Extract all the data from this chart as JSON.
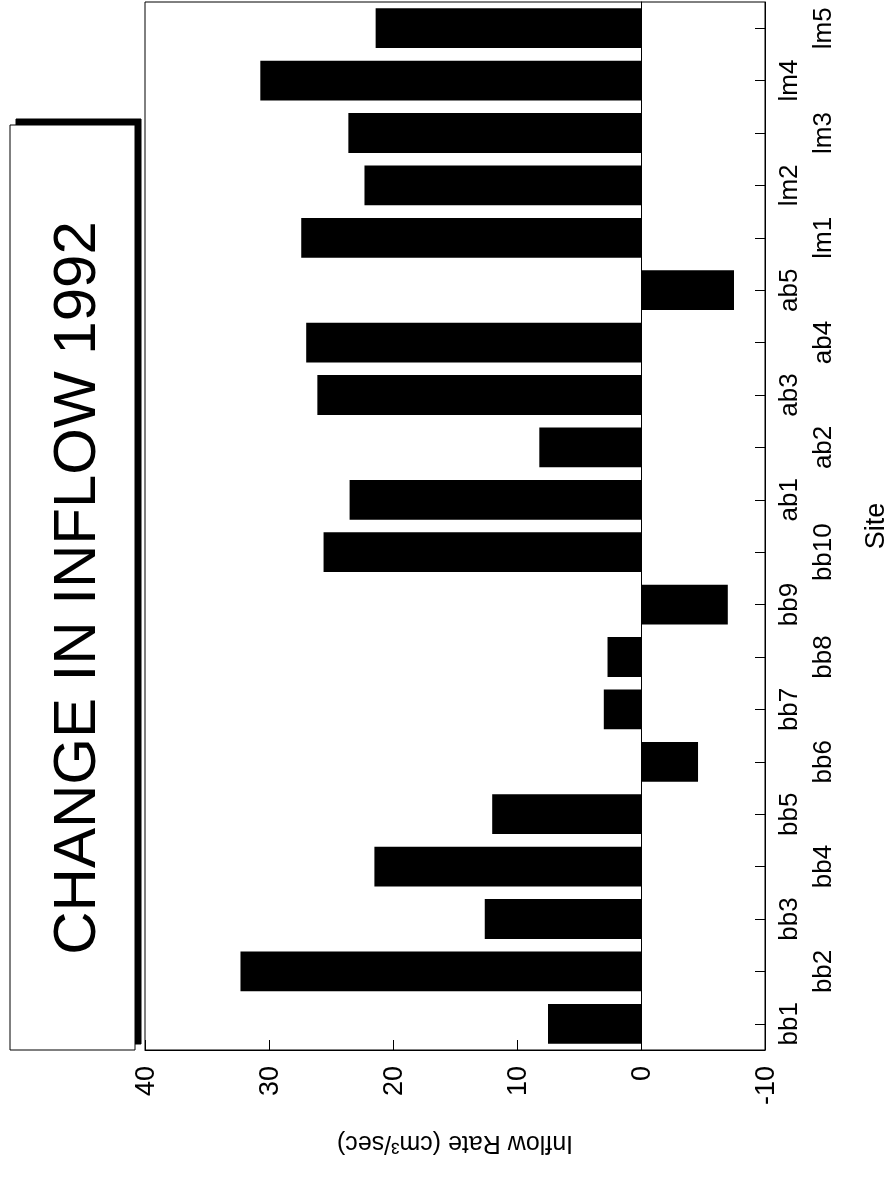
{
  "chart_data": {
    "type": "bar",
    "orientation": "horizontal",
    "title": "CHANGE IN INFLOW 1992",
    "xlabel": "Inflow Rate (cm³/sec)",
    "ylabel": "Site",
    "categories": [
      "lm5",
      "lm4",
      "lm3",
      "lm2",
      "lm1",
      "ab5",
      "ab4",
      "ab3",
      "ab2",
      "ab1",
      "bb10",
      "bb9",
      "bb8",
      "bb7",
      "bb6",
      "bb5",
      "bb4",
      "bb3",
      "bb2",
      "bb1"
    ],
    "values": [
      21.4,
      30.7,
      23.6,
      22.3,
      27.4,
      -7.5,
      27.0,
      26.1,
      8.2,
      23.5,
      25.6,
      -7.0,
      2.7,
      3.0,
      -4.6,
      12.0,
      21.5,
      12.6,
      32.3,
      7.5
    ],
    "color": "#000000",
    "xlim": [
      40,
      -10
    ],
    "xticks": [
      40,
      30,
      20,
      10,
      0,
      -10
    ]
  }
}
